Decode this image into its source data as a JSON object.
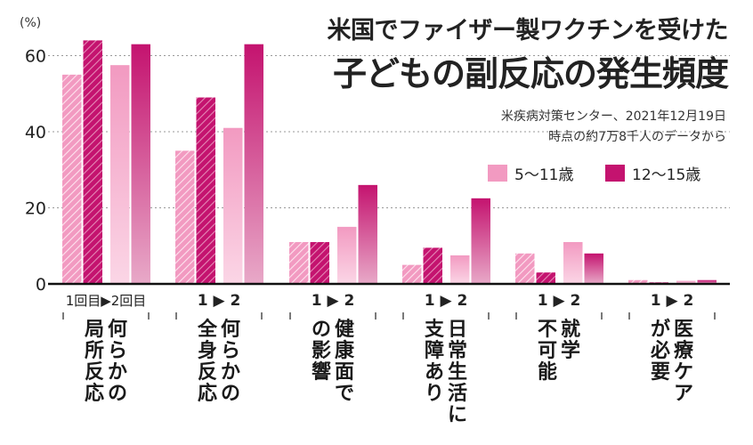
{
  "title_line1": "米国でファイザー製ワクチンを受けた",
  "title_line2": "子どもの副反応の発生頻度",
  "source_line1": "米疾病対策センター、2021年12月19日",
  "source_line2": "時点の約7万8千人のデータから",
  "colors": {
    "young": "#f29ac1",
    "young_light": "#fbd0e2",
    "old": "#c4136f",
    "old_light": "#e7a1c4"
  },
  "chart_data": {
    "type": "bar",
    "ylabel": "(%)",
    "ylim": [
      0,
      66
    ],
    "yticks": [
      0,
      20,
      40,
      60
    ],
    "dose_label_first": "1回目▶2回目",
    "dose_label": "1 ▶ 2",
    "series": [
      {
        "name": "5～11歳",
        "dose1": [
          55,
          35,
          11,
          5,
          8,
          1
        ],
        "dose2": [
          57.5,
          41,
          15,
          7.5,
          11,
          0.8
        ]
      },
      {
        "name": "12～15歳",
        "dose1": [
          64,
          49,
          11,
          9.5,
          3,
          0.4
        ],
        "dose2": [
          63,
          63,
          26,
          22.5,
          8,
          1
        ]
      }
    ],
    "categories": [
      [
        "何らかの",
        "局所反応"
      ],
      [
        "何らかの",
        "全身反応"
      ],
      [
        "健康面で",
        "の影響"
      ],
      [
        "日常生活に",
        "支障あり"
      ],
      [
        "就学",
        "不可能"
      ],
      [
        "医療ケア",
        "が必要"
      ]
    ]
  }
}
